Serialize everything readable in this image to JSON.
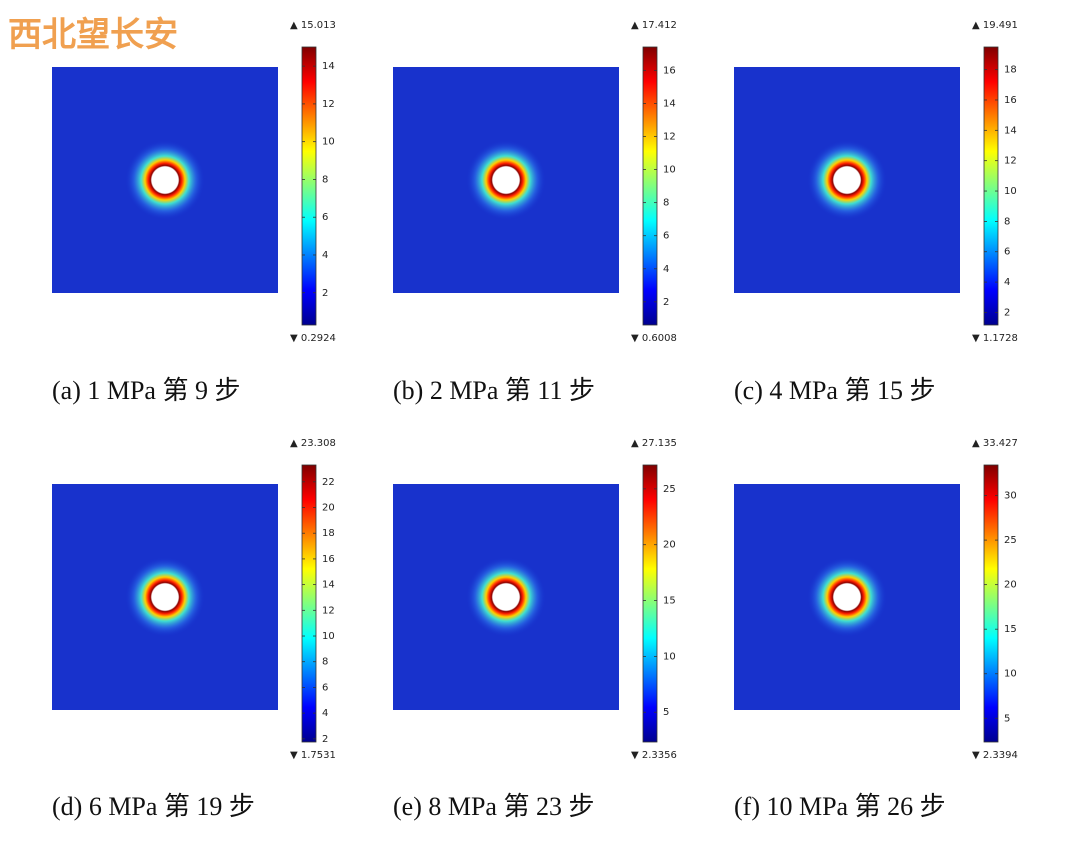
{
  "watermark": "西北望长安",
  "chart_data": [
    {
      "type": "heatmap",
      "caption": "(a) 1 MPa  第 9 步",
      "clim": [
        0.2924,
        15.013
      ],
      "cticks": [
        2,
        4,
        6,
        8,
        10,
        12,
        14
      ]
    },
    {
      "type": "heatmap",
      "caption": "(b) 2 MPa  第 11 步",
      "clim": [
        0.6008,
        17.412
      ],
      "cticks": [
        2,
        4,
        6,
        8,
        10,
        12,
        14,
        16
      ]
    },
    {
      "type": "heatmap",
      "caption": "(c) 4 MPa  第 15 步",
      "clim": [
        1.1728,
        19.491
      ],
      "cticks": [
        2,
        4,
        6,
        8,
        10,
        12,
        14,
        16,
        18
      ]
    },
    {
      "type": "heatmap",
      "caption": "(d) 6 MPa  第 19 步",
      "clim": [
        1.7531,
        23.308
      ],
      "cticks": [
        2,
        4,
        6,
        8,
        10,
        12,
        14,
        16,
        18,
        20,
        22
      ]
    },
    {
      "type": "heatmap",
      "caption": "(e) 8 MPa  第 23 步",
      "clim": [
        2.3356,
        27.135
      ],
      "cticks": [
        5,
        10,
        15,
        20,
        25
      ]
    },
    {
      "type": "heatmap",
      "caption": "(f) 10 MPa  第 26 步",
      "clim": [
        2.3394,
        33.427
      ],
      "cticks": [
        5,
        10,
        15,
        20,
        25,
        30
      ]
    }
  ]
}
